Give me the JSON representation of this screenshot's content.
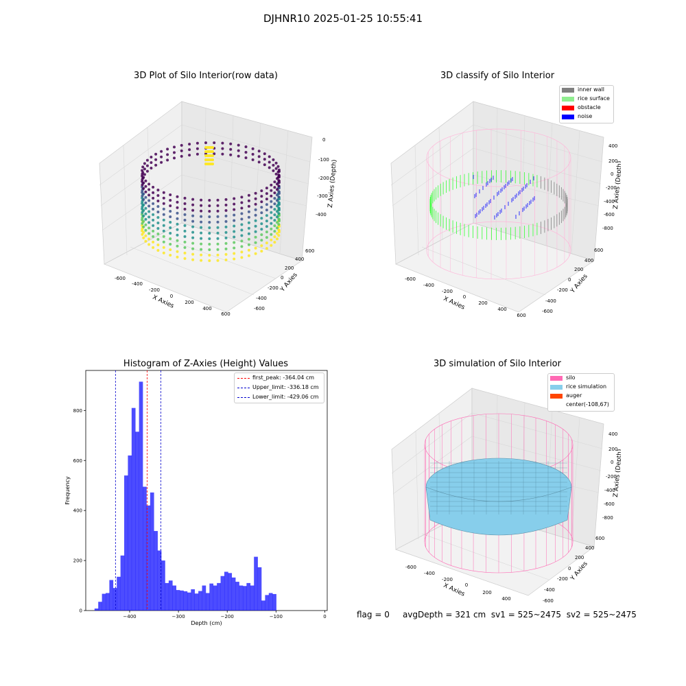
{
  "figure_title": "DJHNR10 2025-01-25 10:55:41",
  "plots": {
    "raw": {
      "title": "3D Plot of Silo Interior(row data)",
      "xlabel": "X Axies",
      "ylabel": "Y Axies",
      "zlabel": "Z Axies (Depth)",
      "x_ticks": [
        "-600",
        "-400",
        "-200",
        "0",
        "200",
        "400",
        "600"
      ],
      "y_ticks": [
        "-600",
        "-400",
        "-200",
        "0",
        "200",
        "400",
        "600"
      ],
      "z_ticks": [
        "0",
        "-100",
        "-200",
        "-300",
        "-400"
      ],
      "colormap": [
        "#440154",
        "#3b528b",
        "#21918c",
        "#5ec962",
        "#fde725"
      ]
    },
    "classify": {
      "title": "3D classify of Silo Interior",
      "xlabel": "X Axies",
      "ylabel": "Y Axies",
      "zlabel": "Z Axies (Depth)",
      "x_ticks": [
        "-600",
        "-400",
        "-200",
        "0",
        "200",
        "400",
        "600"
      ],
      "y_ticks": [
        "-600",
        "-400",
        "-200",
        "0",
        "200",
        "400",
        "600"
      ],
      "z_ticks": [
        "400",
        "200",
        "0",
        "-200",
        "-400",
        "-600",
        "-800"
      ],
      "legend": [
        {
          "label": "inner wall",
          "color": "#808080"
        },
        {
          "label": "rice surface",
          "color": "#90ee90"
        },
        {
          "label": "obstacle",
          "color": "#ff0000"
        },
        {
          "label": "noise",
          "color": "#0000ff"
        }
      ]
    },
    "simulation": {
      "title": "3D simulation of Silo Interior",
      "xlabel": "X Axies",
      "ylabel": "Y Axies",
      "zlabel": "Z Axies (Depth)",
      "x_ticks": [
        "-600",
        "-400",
        "-200",
        "0",
        "200",
        "400"
      ],
      "y_ticks": [
        "-600",
        "-400",
        "-200",
        "0",
        "200",
        "400",
        "600"
      ],
      "z_ticks": [
        "400",
        "200",
        "0",
        "-200",
        "-400",
        "-600",
        "-800"
      ],
      "legend": [
        {
          "label": "silo",
          "color": "#ff69b4"
        },
        {
          "label": "rice simulation",
          "color": "#87ceeb"
        },
        {
          "label": "auger",
          "color": "#ff4500"
        },
        {
          "label": "center(-108,67)",
          "color": ""
        }
      ]
    }
  },
  "chart_data": {
    "type": "bar",
    "title": "Histogram of Z-Axies (Height) Values",
    "xlabel": "Depth (cm)",
    "ylabel": "Frequency",
    "xlim": [
      -490,
      5
    ],
    "ylim": [
      0,
      960
    ],
    "x_ticks": [
      -400,
      -300,
      -200,
      -100,
      0
    ],
    "y_ticks": [
      0,
      200,
      400,
      600,
      800
    ],
    "bar_color": "#0000ff",
    "bin_start": -472,
    "bin_width": 7.6,
    "values": [
      8,
      35,
      67,
      70,
      122,
      90,
      135,
      220,
      540,
      620,
      810,
      715,
      915,
      495,
      420,
      472,
      318,
      240,
      200,
      110,
      120,
      100,
      82,
      80,
      77,
      72,
      85,
      68,
      78,
      100,
      70,
      108,
      100,
      110,
      138,
      155,
      150,
      132,
      115,
      100,
      98,
      110,
      100,
      215,
      173,
      40,
      62,
      70,
      66
    ],
    "vlines": [
      {
        "label": "first_peak: -364.04 cm",
        "value": -364.04,
        "color": "#ff0000"
      },
      {
        "label": "Upper_limit: -336.18 cm",
        "value": -336.18,
        "color": "#0000cc"
      },
      {
        "label": "Lower_limit: -429.06 cm",
        "value": -429.06,
        "color": "#0000cc"
      }
    ],
    "legend_position": "top-right"
  },
  "footer": {
    "flag": "flag = 0",
    "avg_depth": "avgDepth = 321 cm",
    "sv1": "sv1 = 525~2475",
    "sv2": "sv2 = 525~2475"
  }
}
